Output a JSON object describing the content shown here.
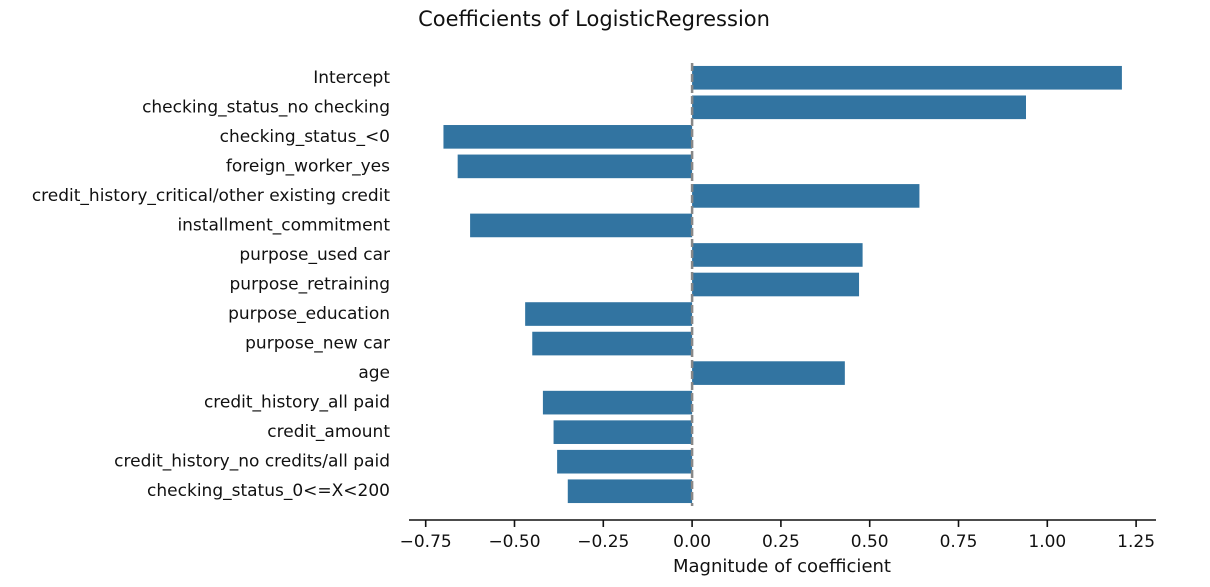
{
  "chart_data": {
    "type": "barh",
    "title": "Coefficients of LogisticRegression",
    "xlabel": "Magnitude of coefficient",
    "categories": [
      "Intercept",
      "checking_status_no checking",
      "checking_status_<0",
      "foreign_worker_yes",
      "credit_history_critical/other existing credit",
      "installment_commitment",
      "purpose_used car",
      "purpose_retraining",
      "purpose_education",
      "purpose_new car",
      "age",
      "credit_history_all paid",
      "credit_amount",
      "credit_history_no credits/all paid",
      "checking_status_0<=X<200"
    ],
    "values": [
      1.21,
      0.94,
      -0.7,
      -0.66,
      0.64,
      -0.625,
      0.48,
      0.47,
      -0.47,
      -0.45,
      0.43,
      -0.42,
      -0.39,
      -0.38,
      -0.35
    ],
    "color": "#3274a1",
    "xlim": [
      -0.797,
      1.306
    ],
    "xticks": [
      {
        "value": -0.75,
        "label": "−0.75"
      },
      {
        "value": -0.5,
        "label": "−0.50"
      },
      {
        "value": -0.25,
        "label": "−0.25"
      },
      {
        "value": 0,
        "label": "0.00"
      },
      {
        "value": 0.25,
        "label": "0.25"
      },
      {
        "value": 0.5,
        "label": "0.50"
      },
      {
        "value": 0.75,
        "label": "0.75"
      },
      {
        "value": 1,
        "label": "1.00"
      },
      {
        "value": 1.25,
        "label": "1.25"
      }
    ]
  }
}
